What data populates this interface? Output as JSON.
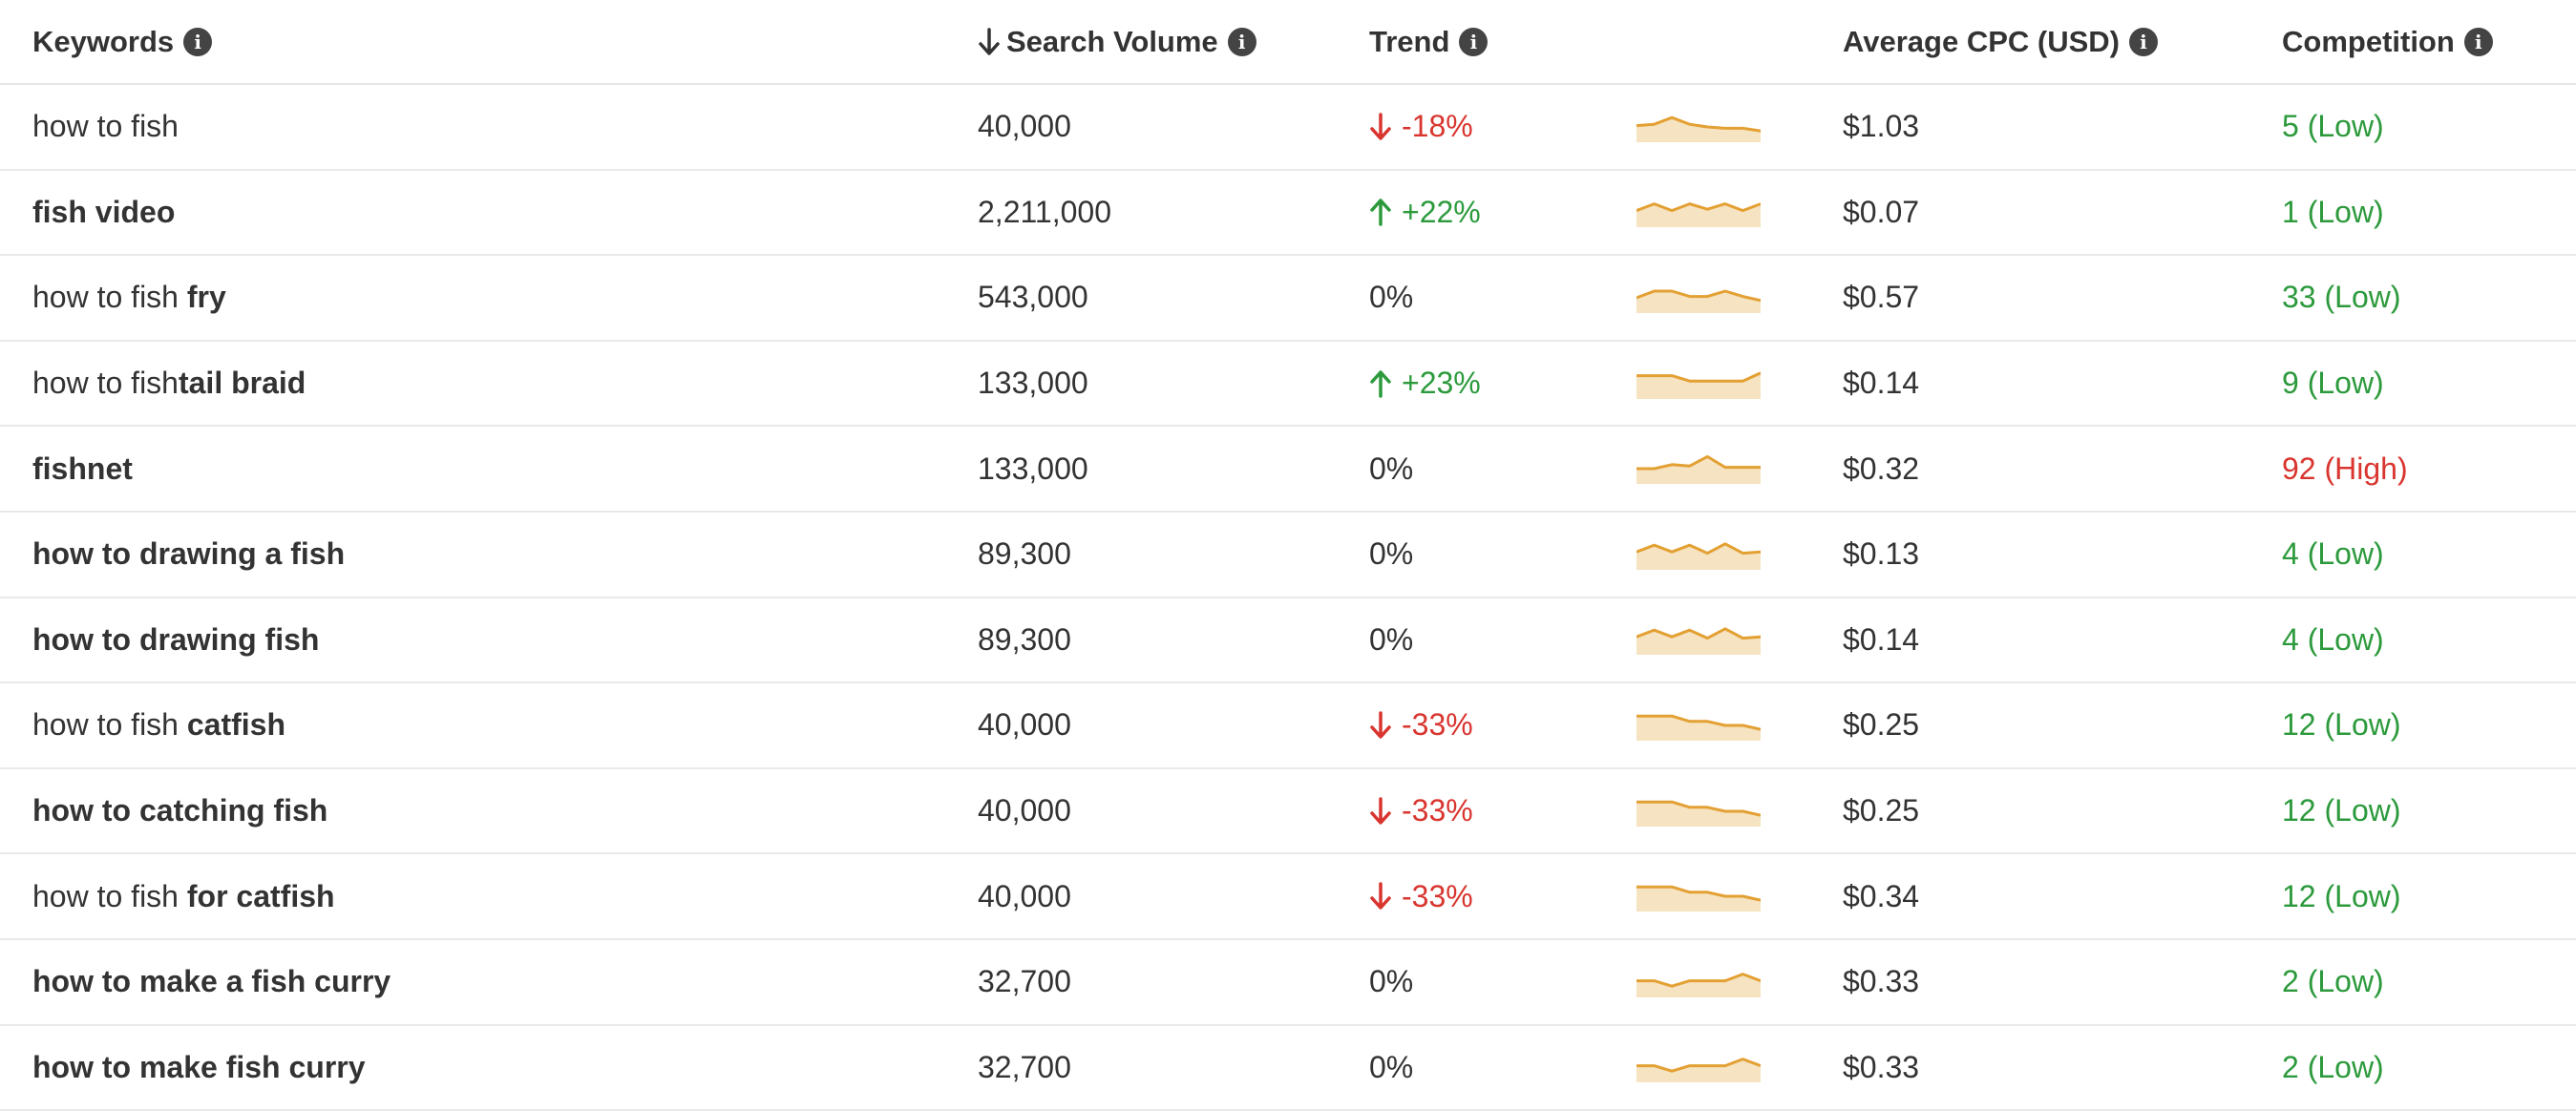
{
  "colors": {
    "low": "#2c9a3c",
    "high": "#d9352f",
    "up": "#2c9a3c",
    "down": "#d9352f",
    "sparkline_stroke": "#e3a033",
    "sparkline_fill": "#f6e3c1"
  },
  "header": {
    "keywords": "Keywords",
    "search_volume": "Search Volume",
    "trend": "Trend",
    "cpc": "Average CPC (USD)",
    "competition": "Competition",
    "info_icon": "info-icon",
    "sort_icon": "arrow-down-icon"
  },
  "rows": [
    {
      "kw_plain": "how to fish",
      "kw_bold": "",
      "volume": "40,000",
      "trend_dir": "down",
      "trend": "-18%",
      "spark": [
        0.55,
        0.6,
        0.85,
        0.6,
        0.5,
        0.45,
        0.45,
        0.35
      ],
      "cpc": "$1.03",
      "competition": "5 (Low)",
      "comp_level": "low"
    },
    {
      "kw_plain": "",
      "kw_bold": "fish video",
      "volume": "2,211,000",
      "trend_dir": "up",
      "trend": "+22%",
      "spark": [
        0.55,
        0.8,
        0.55,
        0.8,
        0.6,
        0.8,
        0.55,
        0.8
      ],
      "cpc": "$0.07",
      "competition": "1 (Low)",
      "comp_level": "low"
    },
    {
      "kw_plain": "how to fish ",
      "kw_bold": "fry",
      "volume": "543,000",
      "trend_dir": "flat",
      "trend": "0%",
      "spark": [
        0.5,
        0.75,
        0.75,
        0.55,
        0.55,
        0.75,
        0.55,
        0.4
      ],
      "cpc": "$0.57",
      "competition": "33 (Low)",
      "comp_level": "low"
    },
    {
      "kw_plain": "how to fish",
      "kw_bold": "tail braid",
      "volume": "133,000",
      "trend_dir": "up",
      "trend": "+23%",
      "spark": [
        0.8,
        0.8,
        0.8,
        0.6,
        0.6,
        0.6,
        0.6,
        0.9
      ],
      "cpc": "$0.14",
      "competition": "9 (Low)",
      "comp_level": "low"
    },
    {
      "kw_plain": "",
      "kw_bold": "fishnet",
      "volume": "133,000",
      "trend_dir": "flat",
      "trend": "0%",
      "spark": [
        0.5,
        0.5,
        0.65,
        0.6,
        0.95,
        0.55,
        0.55,
        0.55
      ],
      "cpc": "$0.32",
      "competition": "92 (High)",
      "comp_level": "high"
    },
    {
      "kw_plain": "",
      "kw_bold": "how to drawing a fish",
      "volume": "89,300",
      "trend_dir": "flat",
      "trend": "0%",
      "spark": [
        0.6,
        0.85,
        0.6,
        0.85,
        0.55,
        0.9,
        0.55,
        0.6
      ],
      "cpc": "$0.13",
      "competition": "4 (Low)",
      "comp_level": "low"
    },
    {
      "kw_plain": "",
      "kw_bold": "how to drawing fish",
      "volume": "89,300",
      "trend_dir": "flat",
      "trend": "0%",
      "spark": [
        0.6,
        0.85,
        0.6,
        0.85,
        0.55,
        0.9,
        0.55,
        0.6
      ],
      "cpc": "$0.14",
      "competition": "4 (Low)",
      "comp_level": "low"
    },
    {
      "kw_plain": "how to fish ",
      "kw_bold": "catfish",
      "volume": "40,000",
      "trend_dir": "down",
      "trend": "-33%",
      "spark": [
        0.85,
        0.85,
        0.85,
        0.65,
        0.65,
        0.5,
        0.5,
        0.35
      ],
      "cpc": "$0.25",
      "competition": "12 (Low)",
      "comp_level": "low"
    },
    {
      "kw_plain": "",
      "kw_bold": "how to catching fish",
      "volume": "40,000",
      "trend_dir": "down",
      "trend": "-33%",
      "spark": [
        0.85,
        0.85,
        0.85,
        0.65,
        0.65,
        0.5,
        0.5,
        0.35
      ],
      "cpc": "$0.25",
      "competition": "12 (Low)",
      "comp_level": "low"
    },
    {
      "kw_plain": "how to fish ",
      "kw_bold": "for catfish",
      "volume": "40,000",
      "trend_dir": "down",
      "trend": "-33%",
      "spark": [
        0.85,
        0.85,
        0.85,
        0.65,
        0.65,
        0.5,
        0.5,
        0.35
      ],
      "cpc": "$0.34",
      "competition": "12 (Low)",
      "comp_level": "low"
    },
    {
      "kw_plain": "",
      "kw_bold": "how to make a fish curry",
      "volume": "32,700",
      "trend_dir": "flat",
      "trend": "0%",
      "spark": [
        0.55,
        0.55,
        0.35,
        0.55,
        0.55,
        0.55,
        0.8,
        0.55
      ],
      "cpc": "$0.33",
      "competition": "2 (Low)",
      "comp_level": "low"
    },
    {
      "kw_plain": "",
      "kw_bold": "how to make fish curry",
      "volume": "32,700",
      "trend_dir": "flat",
      "trend": "0%",
      "spark": [
        0.55,
        0.55,
        0.35,
        0.55,
        0.55,
        0.55,
        0.8,
        0.55
      ],
      "cpc": "$0.33",
      "competition": "2 (Low)",
      "comp_level": "low"
    }
  ]
}
